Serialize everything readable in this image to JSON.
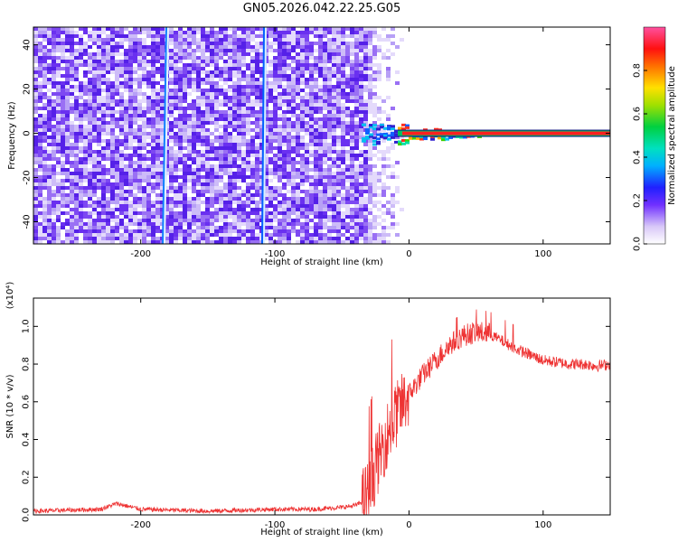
{
  "title": "GN05.2026.042.22.25.G05",
  "chart_data": [
    {
      "type": "heatmap",
      "xlabel": "Height of straight line (km)",
      "ylabel": "Frequency (Hz)",
      "xlim": [
        -280,
        150
      ],
      "ylim": [
        -50,
        48
      ],
      "xticks": [
        -200,
        -100,
        0,
        100
      ],
      "yticks": [
        -40,
        -20,
        0,
        20,
        40
      ],
      "colorbar": {
        "label": "Normalized spectral amplitude",
        "range": [
          0.0,
          1.0
        ],
        "ticks": [
          0.0,
          0.2,
          0.4,
          0.6,
          0.8
        ]
      },
      "features": {
        "noise_region_x": [
          -280,
          -15
        ],
        "bright_streaks_x": [
          -180,
          -107
        ],
        "signal_line_frequency": 0,
        "signal_onset_x": -30
      }
    },
    {
      "type": "line",
      "xlabel": "Height of straight line (km)",
      "ylabel": "SNR (10 * v/v)",
      "multiplier": "(x10⁴)",
      "xlim": [
        -280,
        150
      ],
      "ylim": [
        0.0,
        1.15
      ],
      "xticks": [
        -200,
        -100,
        0,
        100
      ],
      "yticks": [
        0.0,
        0.2,
        0.4,
        0.6,
        0.8,
        1.0
      ],
      "color": "#ee3333",
      "series_envelope": {
        "x": [
          -280,
          -230,
          -218,
          -200,
          -150,
          -100,
          -70,
          -50,
          -40,
          -35,
          -30,
          -25,
          -20,
          -15,
          -10,
          -5,
          0,
          10,
          20,
          30,
          40,
          50,
          60,
          70,
          80,
          90,
          100,
          110,
          120,
          130,
          140,
          150
        ],
        "y": [
          0.02,
          0.03,
          0.06,
          0.03,
          0.02,
          0.03,
          0.03,
          0.04,
          0.05,
          0.07,
          0.12,
          0.25,
          0.35,
          0.45,
          0.52,
          0.58,
          0.64,
          0.74,
          0.82,
          0.9,
          0.95,
          0.97,
          0.96,
          0.92,
          0.88,
          0.85,
          0.82,
          0.81,
          0.8,
          0.8,
          0.79,
          0.8
        ]
      }
    }
  ]
}
